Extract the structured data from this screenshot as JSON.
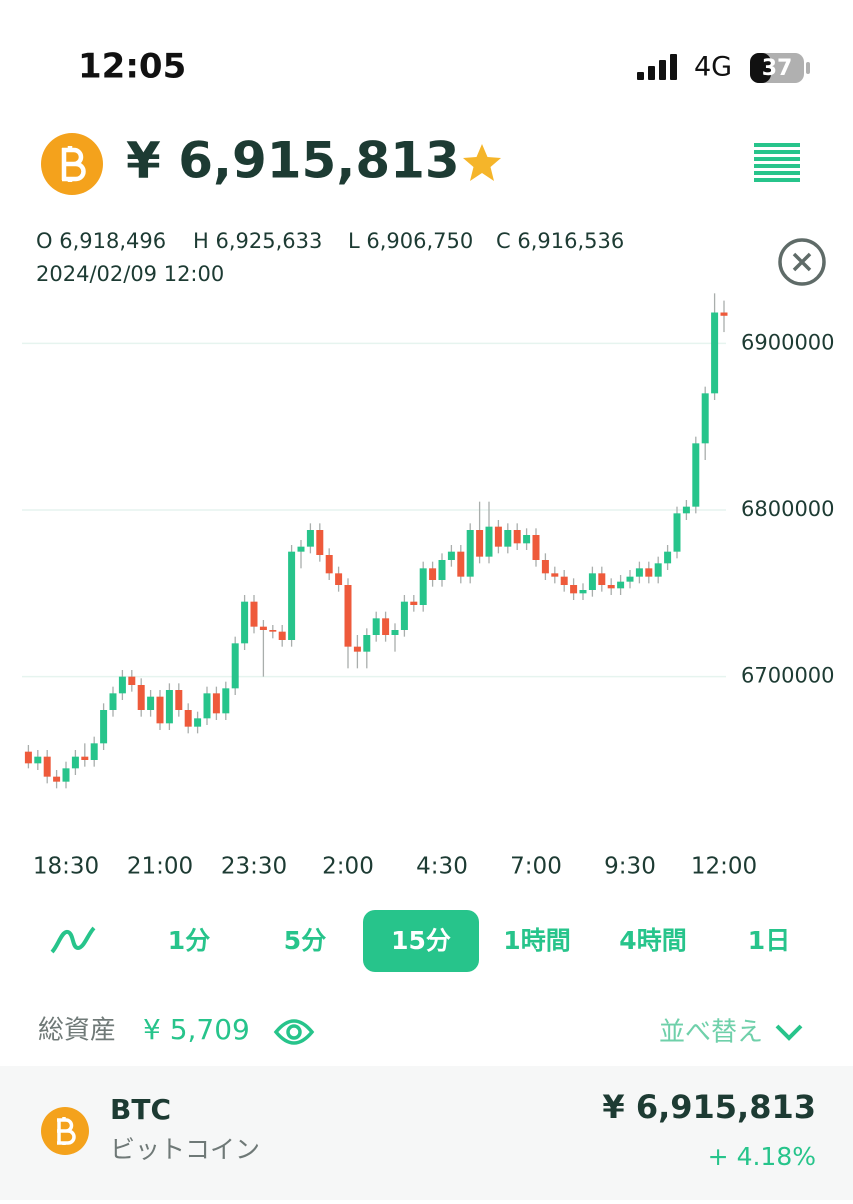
{
  "status_bar": {
    "time": "12:05",
    "network": "4G",
    "battery": "37"
  },
  "header": {
    "price": "¥ 6,915,813"
  },
  "ohlc": {
    "open": "O 6,918,496",
    "high": "H 6,925,633",
    "low": "L 6,906,750",
    "close": "C 6,916,536",
    "datetime": "2024/02/09 12:00"
  },
  "chart_data": {
    "type": "candlestick",
    "categories": [
      null,
      null,
      null,
      null,
      "18:30",
      null,
      null,
      null,
      null,
      null,
      null,
      null,
      null,
      null,
      "21:00",
      null,
      null,
      null,
      null,
      null,
      null,
      null,
      null,
      null,
      "23:30",
      null,
      null,
      null,
      null,
      null,
      null,
      null,
      null,
      null,
      "2:00",
      null,
      null,
      null,
      null,
      null,
      null,
      null,
      null,
      null,
      "4:30",
      null,
      null,
      null,
      null,
      null,
      null,
      null,
      null,
      null,
      "7:00",
      null,
      null,
      null,
      null,
      null,
      null,
      null,
      null,
      null,
      "9:30",
      null,
      null,
      null,
      null,
      null,
      null,
      null,
      null,
      null,
      "12:00"
    ],
    "open": [
      6655000,
      6648000,
      6652000,
      6640000,
      6637000,
      6645000,
      6652000,
      6650000,
      6660000,
      6680000,
      6690000,
      6700000,
      6695000,
      6680000,
      6688000,
      6672000,
      6692000,
      6680000,
      6670000,
      6675000,
      6690000,
      6678000,
      6693000,
      6720000,
      6745000,
      6730000,
      6728000,
      6727000,
      6722000,
      6775000,
      6778000,
      6788000,
      6773000,
      6762000,
      6755000,
      6718000,
      6715000,
      6725000,
      6735000,
      6725000,
      6728000,
      6745000,
      6743000,
      6765000,
      6758000,
      6770000,
      6775000,
      6760000,
      6788000,
      6772000,
      6790000,
      6778000,
      6788000,
      6780000,
      6785000,
      6770000,
      6762000,
      6760000,
      6755000,
      6750000,
      6752000,
      6762000,
      6755000,
      6753000,
      6757000,
      6760000,
      6765000,
      6760000,
      6768000,
      6775000,
      6798000,
      6802000,
      6840000,
      6870000,
      6918496
    ],
    "high": [
      6659000,
      6656000,
      6656000,
      6644000,
      6649000,
      6656000,
      6660000,
      6664000,
      6684000,
      6694000,
      6704000,
      6704000,
      6699000,
      6692000,
      6692000,
      6696000,
      6696000,
      6684000,
      6679000,
      6694000,
      6694000,
      6697000,
      6724000,
      6749000,
      6749000,
      6734000,
      6731000,
      6731000,
      6779000,
      6782000,
      6792000,
      6792000,
      6777000,
      6766000,
      6759000,
      6725000,
      6729000,
      6739000,
      6739000,
      6732000,
      6749000,
      6749000,
      6769000,
      6769000,
      6774000,
      6779000,
      6779000,
      6792000,
      6805000,
      6805000,
      6794000,
      6792000,
      6792000,
      6789000,
      6789000,
      6774000,
      6766000,
      6764000,
      6759000,
      6756000,
      6766000,
      6766000,
      6759000,
      6761000,
      6764000,
      6769000,
      6769000,
      6772000,
      6779000,
      6802000,
      6806000,
      6844000,
      6874000,
      6930000,
      6925633
    ],
    "low": [
      6645000,
      6644000,
      6636000,
      6633000,
      6633000,
      6641000,
      6646000,
      6646000,
      6656000,
      6676000,
      6686000,
      6691000,
      6676000,
      6676000,
      6668000,
      6668000,
      6676000,
      6666000,
      6666000,
      6671000,
      6674000,
      6674000,
      6689000,
      6716000,
      6726000,
      6700000,
      6723000,
      6718000,
      6718000,
      6765000,
      6774000,
      6769000,
      6758000,
      6751000,
      6705000,
      6705000,
      6705000,
      6721000,
      6721000,
      6715000,
      6724000,
      6739000,
      6739000,
      6754000,
      6754000,
      6766000,
      6756000,
      6756000,
      6768000,
      6768000,
      6774000,
      6774000,
      6776000,
      6776000,
      6766000,
      6758000,
      6756000,
      6751000,
      6746000,
      6746000,
      6748000,
      6751000,
      6749000,
      6749000,
      6753000,
      6756000,
      6756000,
      6756000,
      6764000,
      6771000,
      6794000,
      6798000,
      6830000,
      6866000,
      6906750
    ],
    "close": [
      6648000,
      6652000,
      6640000,
      6637000,
      6645000,
      6652000,
      6650000,
      6660000,
      6680000,
      6690000,
      6700000,
      6695000,
      6680000,
      6688000,
      6672000,
      6692000,
      6680000,
      6670000,
      6675000,
      6690000,
      6678000,
      6693000,
      6720000,
      6745000,
      6730000,
      6728000,
      6727000,
      6722000,
      6775000,
      6778000,
      6788000,
      6773000,
      6762000,
      6755000,
      6718000,
      6715000,
      6725000,
      6735000,
      6725000,
      6728000,
      6745000,
      6743000,
      6765000,
      6758000,
      6770000,
      6775000,
      6760000,
      6788000,
      6772000,
      6790000,
      6778000,
      6788000,
      6780000,
      6785000,
      6770000,
      6762000,
      6760000,
      6755000,
      6750000,
      6752000,
      6762000,
      6755000,
      6753000,
      6757000,
      6760000,
      6765000,
      6760000,
      6768000,
      6775000,
      6798000,
      6802000,
      6840000,
      6870000,
      6918496,
      6916536
    ],
    "up_color": "#27c48b",
    "down_color": "#ee5a3b",
    "ylim": [
      6608000,
      6932000
    ],
    "yticks": [
      6700000,
      6800000,
      6900000
    ],
    "grid": true
  },
  "timeframes": [
    "1分",
    "5分",
    "15分",
    "1時間",
    "4時間",
    "1日"
  ],
  "assets": {
    "label": "総資産",
    "value": "¥ 5,709",
    "sort": "並べ替え"
  },
  "holding": {
    "symbol": "BTC",
    "name": "ビットコイン",
    "price": "¥ 6,915,813",
    "change": "+ 4.18%"
  }
}
